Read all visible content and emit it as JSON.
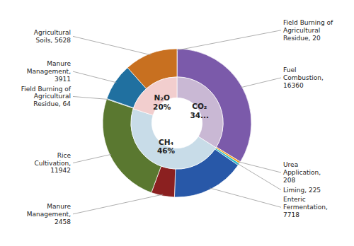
{
  "chart_data": {
    "type": "donut",
    "data_labels": true,
    "series": [
      {
        "values": [
          20,
          16360,
          208,
          225,
          7718,
          2458,
          11942,
          64,
          3911,
          5628
        ],
        "colors": [
          "#8a6aaa",
          "#7b5aaa",
          "#f0a020",
          "#20b8c8",
          "#2858a8",
          "#8b2020",
          "#5a7830",
          "#307888",
          "#2070a0",
          "#c87020"
        ],
        "value_labels": [
          "Field Burning of\nAgricultural\nResidue, 20",
          "Fuel\nCombustion,\n16360",
          "Urea\nApplication,\n208",
          "Liming, 225",
          "Enteric\nFermentation,\n7718",
          "Manure\nManagement,\n2458",
          "Rice\nCultivation,\n11942",
          "Field Burning of\nAgricultural\nResidue, 64",
          "Manure\nManagement,\n3911",
          "Agricultural\nSoils, 5628"
        ]
      },
      {
        "values": [
          34,
          46,
          20
        ],
        "colors": [
          "#c9b8d4",
          "#c8dce8",
          "#f2cece"
        ],
        "value_labels": [
          "CO₂\n34...",
          "CH₄\n46%",
          "N₂O\n20%"
        ]
      }
    ]
  }
}
